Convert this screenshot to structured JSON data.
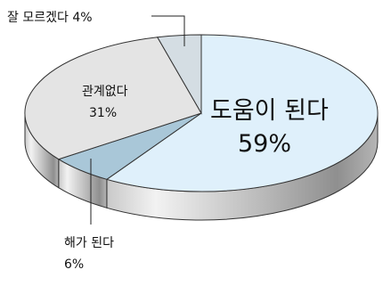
{
  "chart_data": {
    "type": "pie",
    "style": "3d",
    "slices": [
      {
        "label": "도움이 된다",
        "percent_text": "59%",
        "value": 59,
        "color": "#dff0fb",
        "side_color": "#b7c9d6"
      },
      {
        "label": "해가 된다",
        "percent_text": "6%",
        "value": 6,
        "color": "#a9c7d8",
        "side_color": "#86a2b2"
      },
      {
        "label": "관계없다",
        "percent_text": "31%",
        "value": 31,
        "color": "#e4e4e4",
        "side_color": "#bdbdbd"
      },
      {
        "label": "잘 모르겠다",
        "percent_text": "4%",
        "value": 4,
        "color": "#d4dde3",
        "side_color": "#aeb8bf"
      }
    ]
  }
}
